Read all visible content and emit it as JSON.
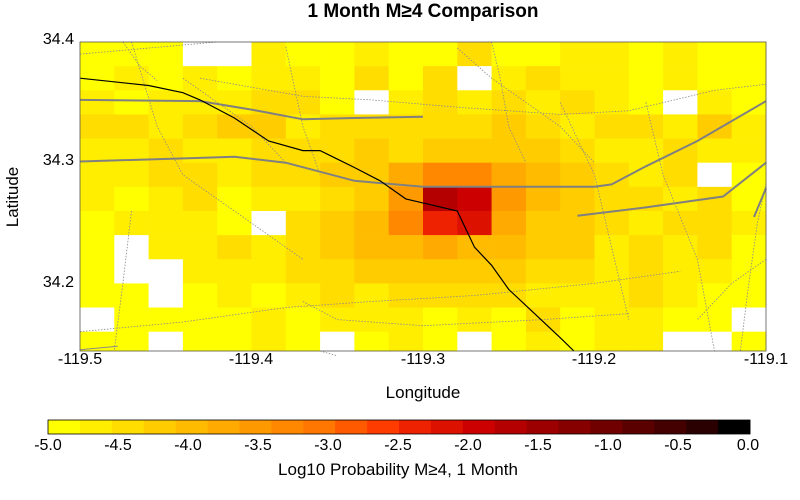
{
  "title": "1 Month M≥4 Comparison",
  "axes": {
    "xlabel": "Longitude",
    "ylabel": "Latitude",
    "xlim": [
      -119.5,
      -119.1
    ],
    "ylim": [
      34.144,
      34.4
    ],
    "x_ticks": [
      "-119.5",
      "-119.4",
      "-119.3",
      "-119.2",
      "-119.1"
    ],
    "y_ticks": [
      "34.4",
      "34.3",
      "34.2"
    ]
  },
  "chart_data": {
    "type": "heatmap",
    "title": "1 Month M≥4 Comparison",
    "xlabel": "Longitude",
    "ylabel": "Latitude",
    "x_range": [
      -119.5,
      -119.1
    ],
    "y_range": [
      34.144,
      34.4
    ],
    "cell_size_deg": 0.02,
    "grid_origin": {
      "lon": -119.5,
      "lat": 34.4
    },
    "value_units": "Log10 Probability M≥4, 1 Month",
    "rows_top_to_bottom": [
      [
        -4.8,
        -4.9,
        -4.9,
        null,
        null,
        -4.7,
        -4.8,
        -4.9,
        -4.7,
        -4.8,
        -4.9,
        -4.5,
        -4.8,
        -4.9,
        -4.7,
        -4.6,
        -4.9,
        -4.6,
        -4.8,
        -4.9
      ],
      [
        -4.8,
        -4.7,
        -4.9,
        -4.6,
        -4.8,
        -4.7,
        -4.6,
        -4.9,
        -4.5,
        -4.8,
        -4.4,
        null,
        -4.6,
        -4.4,
        -4.6,
        -4.7,
        -4.8,
        -4.7,
        -4.8,
        -4.9
      ],
      [
        -4.6,
        -4.8,
        -4.7,
        -4.6,
        -4.7,
        -4.4,
        -4.5,
        -4.8,
        null,
        -4.6,
        -4.5,
        -4.6,
        -4.4,
        -4.7,
        -4.4,
        -4.6,
        -4.8,
        null,
        -4.6,
        -4.8
      ],
      [
        -4.4,
        -4.5,
        -4.6,
        -4.5,
        -4.3,
        -4.3,
        -4.6,
        -4.5,
        -4.4,
        -4.5,
        -4.4,
        -4.4,
        -4.3,
        -4.4,
        -4.6,
        -4.4,
        -4.5,
        -4.6,
        -4.3,
        -4.7
      ],
      [
        -4.6,
        -4.7,
        -4.5,
        -4.6,
        -4.7,
        -4.4,
        -4.5,
        -4.4,
        -4.3,
        -4.4,
        -4.3,
        -4.1,
        -4.3,
        -4.2,
        -4.4,
        -4.6,
        -4.7,
        -4.5,
        -4.6,
        -4.7
      ],
      [
        -4.7,
        -4.6,
        -4.5,
        -4.5,
        -4.6,
        -4.5,
        -4.4,
        -4.3,
        -4.2,
        -3.7,
        -3.4,
        -3.3,
        -3.8,
        -4.0,
        -4.3,
        -4.5,
        -4.6,
        -4.5,
        null,
        -4.8
      ],
      [
        -4.7,
        -4.8,
        -4.6,
        -4.4,
        -4.8,
        -4.6,
        -4.6,
        -4.4,
        -4.1,
        -3.6,
        -1.8,
        -2.0,
        -3.6,
        -4.0,
        -4.2,
        -4.4,
        -4.5,
        -4.6,
        -4.4,
        -4.8
      ],
      [
        -4.8,
        -4.7,
        -4.6,
        -4.7,
        -4.8,
        null,
        -4.5,
        -4.2,
        -3.9,
        -3.3,
        -2.4,
        -2.1,
        -3.7,
        -4.1,
        -4.3,
        -4.5,
        -4.6,
        -4.4,
        -4.5,
        -4.7
      ],
      [
        -4.8,
        null,
        -4.7,
        -4.6,
        -4.5,
        -4.6,
        -4.4,
        -4.3,
        -4.0,
        -3.9,
        -3.8,
        -3.9,
        -4.0,
        -4.2,
        -4.3,
        -4.6,
        -4.4,
        -4.6,
        -4.5,
        -4.8
      ],
      [
        -4.8,
        null,
        null,
        -4.7,
        -4.6,
        -4.7,
        -4.5,
        -4.4,
        -4.3,
        -4.1,
        -4.2,
        -4.3,
        -4.3,
        -4.4,
        -4.5,
        -4.7,
        -4.4,
        -4.6,
        -4.7,
        -4.9
      ],
      [
        -4.9,
        -4.8,
        null,
        -4.8,
        -4.6,
        -4.8,
        -4.7,
        -4.5,
        -4.6,
        -4.4,
        -4.5,
        -4.4,
        -4.4,
        -4.6,
        -4.7,
        -4.7,
        -4.5,
        -4.7,
        -4.8,
        -4.9
      ],
      [
        null,
        -4.9,
        -4.9,
        -4.8,
        -4.8,
        -4.6,
        -4.8,
        -4.7,
        -4.7,
        -4.6,
        -4.8,
        -4.6,
        -4.8,
        -4.5,
        -4.8,
        -4.7,
        -4.6,
        -4.8,
        -4.8,
        null
      ],
      [
        -4.9,
        -4.8,
        null,
        -4.9,
        -4.8,
        -4.7,
        -4.8,
        null,
        -4.8,
        -4.7,
        -4.8,
        null,
        -4.9,
        -4.7,
        -4.9,
        -4.7,
        -4.7,
        null,
        null,
        -4.9
      ],
      [
        null,
        null,
        -4.9,
        -4.9,
        -4.9,
        -4.8,
        -4.8,
        -4.9,
        null,
        -4.8,
        -4.9,
        null,
        -4.9,
        -4.8,
        -4.8,
        -4.8,
        -4.8,
        null,
        -4.9,
        null
      ]
    ]
  },
  "overlays": {
    "roads": [
      [
        [
          -119.5,
          34.352
        ],
        [
          -119.43,
          34.351
        ],
        [
          -119.4,
          34.344
        ],
        [
          -119.37,
          34.336
        ],
        [
          -119.34,
          34.337
        ],
        [
          -119.3,
          34.338
        ]
      ],
      [
        [
          -119.5,
          34.301
        ],
        [
          -119.43,
          34.304
        ],
        [
          -119.41,
          34.305
        ],
        [
          -119.38,
          34.3
        ],
        [
          -119.34,
          34.285
        ],
        [
          -119.3,
          34.28
        ],
        [
          -119.25,
          34.28
        ],
        [
          -119.2,
          34.28
        ],
        [
          -119.19,
          34.282
        ],
        [
          -119.17,
          34.297
        ],
        [
          -119.14,
          34.318
        ],
        [
          -119.1,
          34.351
        ]
      ],
      [
        [
          -119.21,
          34.256
        ],
        [
          -119.17,
          34.263
        ],
        [
          -119.125,
          34.272
        ],
        [
          -119.1,
          34.3
        ]
      ]
    ],
    "coastline": [
      [
        -119.5,
        34.37
      ],
      [
        -119.46,
        34.364
      ],
      [
        -119.44,
        34.358
      ],
      [
        -119.43,
        34.352
      ],
      [
        -119.41,
        34.337
      ],
      [
        -119.39,
        34.318
      ],
      [
        -119.37,
        34.31
      ],
      [
        -119.36,
        34.31
      ],
      [
        -119.35,
        34.303
      ],
      [
        -119.34,
        34.296
      ],
      [
        -119.325,
        34.285
      ],
      [
        -119.31,
        34.27
      ],
      [
        -119.295,
        34.265
      ],
      [
        -119.28,
        34.26
      ],
      [
        -119.275,
        34.245
      ],
      [
        -119.27,
        34.23
      ],
      [
        -119.26,
        34.215
      ],
      [
        -119.25,
        34.195
      ],
      [
        -119.235,
        34.175
      ],
      [
        -119.22,
        34.155
      ],
      [
        -119.212,
        34.144
      ]
    ],
    "faults": [
      [
        [
          -119.5,
          34.39
        ],
        [
          -119.42,
          34.4
        ]
      ],
      [
        [
          -119.475,
          34.4
        ],
        [
          -119.465,
          34.38
        ],
        [
          -119.455,
          34.368
        ]
      ],
      [
        [
          -119.47,
          34.4
        ],
        [
          -119.455,
          34.33
        ],
        [
          -119.44,
          34.29
        ],
        [
          -119.41,
          34.26
        ],
        [
          -119.37,
          34.22
        ]
      ],
      [
        [
          -119.44,
          34.37
        ],
        [
          -119.4,
          34.33
        ],
        [
          -119.38,
          34.3
        ]
      ],
      [
        [
          -119.43,
          34.37
        ],
        [
          -119.37,
          34.355
        ],
        [
          -119.33,
          34.352
        ],
        [
          -119.28,
          34.346
        ],
        [
          -119.22,
          34.34
        ],
        [
          -119.18,
          34.343
        ],
        [
          -119.13,
          34.36
        ],
        [
          -119.1,
          34.365
        ]
      ],
      [
        [
          -119.47,
          34.26
        ],
        [
          -119.475,
          34.2
        ],
        [
          -119.48,
          34.145
        ]
      ],
      [
        [
          -119.38,
          34.396
        ],
        [
          -119.37,
          34.33
        ],
        [
          -119.36,
          34.29
        ]
      ],
      [
        [
          -119.37,
          34.185
        ],
        [
          -119.35,
          34.17
        ],
        [
          -119.3,
          34.165
        ],
        [
          -119.23,
          34.17
        ],
        [
          -119.18,
          34.175
        ]
      ],
      [
        [
          -119.5,
          34.16
        ],
        [
          -119.44,
          34.168
        ],
        [
          -119.38,
          34.18
        ],
        [
          -119.33,
          34.185
        ],
        [
          -119.27,
          34.19
        ],
        [
          -119.2,
          34.2
        ],
        [
          -119.15,
          34.21
        ]
      ],
      [
        [
          -119.36,
          34.144
        ],
        [
          -119.35,
          34.14
        ]
      ],
      [
        [
          -119.26,
          34.4
        ],
        [
          -119.255,
          34.37
        ],
        [
          -119.25,
          34.33
        ],
        [
          -119.24,
          34.3
        ]
      ],
      [
        [
          -119.28,
          34.395
        ],
        [
          -119.26,
          34.37
        ],
        [
          -119.22,
          34.33
        ],
        [
          -119.2,
          34.3
        ]
      ],
      [
        [
          -119.22,
          34.35
        ],
        [
          -119.2,
          34.29
        ],
        [
          -119.19,
          34.23
        ],
        [
          -119.18,
          34.17
        ]
      ],
      [
        [
          -119.17,
          34.35
        ],
        [
          -119.16,
          34.29
        ],
        [
          -119.14,
          34.22
        ],
        [
          -119.13,
          34.144
        ]
      ],
      [
        [
          -119.1,
          34.283
        ],
        [
          -119.105,
          34.25
        ],
        [
          -119.11,
          34.2
        ],
        [
          -119.115,
          34.144
        ]
      ],
      [
        [
          -119.1,
          34.22
        ],
        [
          -119.12,
          34.2
        ],
        [
          -119.14,
          34.17
        ]
      ]
    ],
    "grey_polyline": [
      [
        -119.1,
        34.279
      ],
      [
        -119.107,
        34.255
      ]
    ],
    "short_segment": [
      [
        -119.5,
        34.145
      ],
      [
        -119.478,
        34.148
      ]
    ]
  },
  "colorbar": {
    "title": "Log10 Probability M≥4, 1 Month",
    "min": -5.0,
    "max": 0.0,
    "tick_labels": [
      "-5.0",
      "-4.5",
      "-4.0",
      "-3.5",
      "-3.0",
      "-2.5",
      "-2.0",
      "-1.5",
      "-1.0",
      "-0.5",
      "0.0"
    ],
    "colors": [
      "#ffff00",
      "#ffee00",
      "#ffdd00",
      "#ffcc00",
      "#ffbb00",
      "#ffaa00",
      "#ff9900",
      "#ff8800",
      "#ff7700",
      "#ff5a00",
      "#ff3c00",
      "#ee2200",
      "#dd1100",
      "#cc0000",
      "#b40000",
      "#9c0000",
      "#860000",
      "#700000",
      "#5a0000",
      "#440000",
      "#2a0000",
      "#000000"
    ]
  },
  "colors": {
    "road": "#808080",
    "coastline": "#000000",
    "fault": "#8a8a8a",
    "no_data": "#ffffff"
  }
}
